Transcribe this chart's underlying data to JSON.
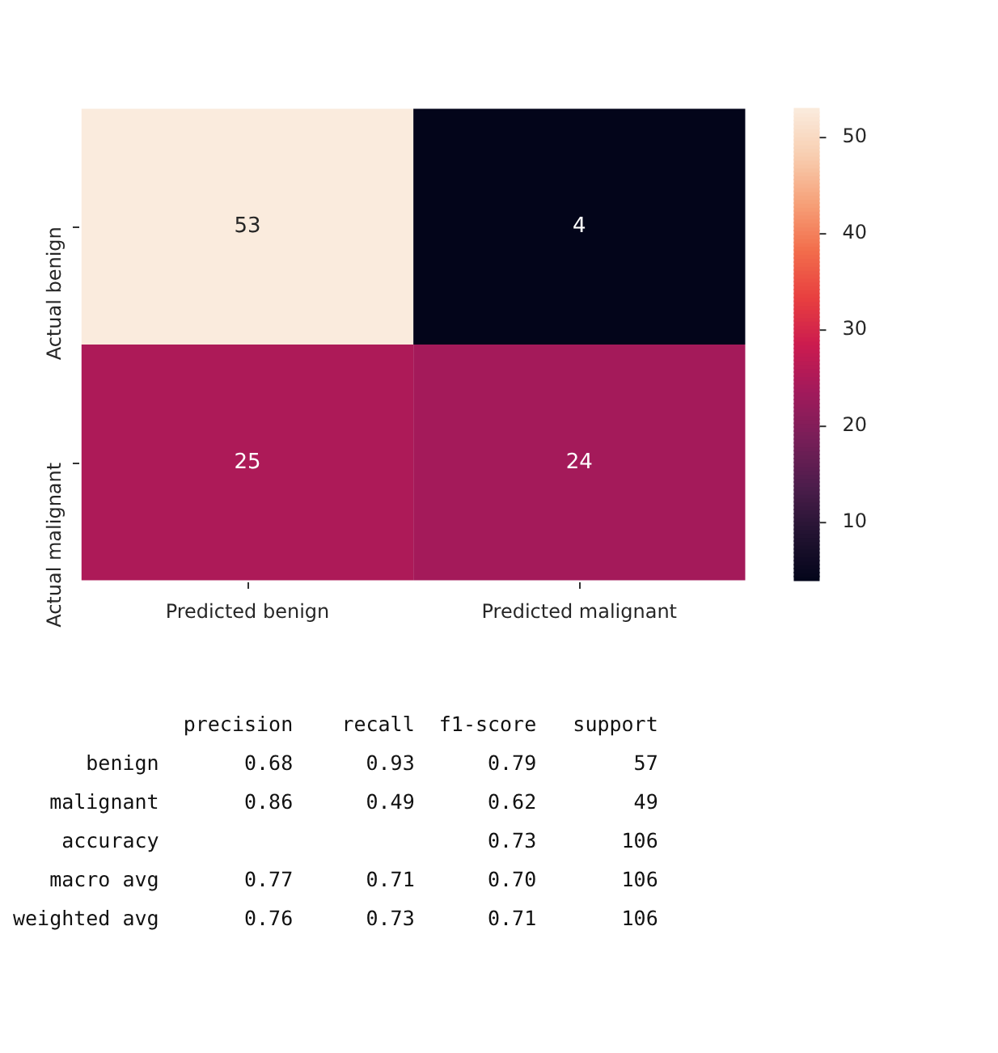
{
  "chart_data": [
    {
      "type": "heatmap",
      "categories": [
        "Predicted benign",
        "Predicted malignant"
      ],
      "y_categories": [
        "Actual benign",
        "Actual malignant"
      ],
      "cells": [
        [
          53,
          4
        ],
        [
          25,
          24
        ]
      ],
      "clim": [
        4,
        53
      ],
      "cticks": [
        10,
        20,
        30,
        40,
        50
      ],
      "data_labels": true
    },
    {
      "type": "other",
      "annotations": [
        "              precision    recall  f1-score   support",
        "      benign       0.68      0.93      0.79        57",
        "   malignant       0.86      0.49      0.62        49",
        "    accuracy                           0.73       106",
        "   macro avg       0.77      0.71      0.70       106",
        "weighted avg       0.76      0.73      0.71       106"
      ]
    }
  ]
}
